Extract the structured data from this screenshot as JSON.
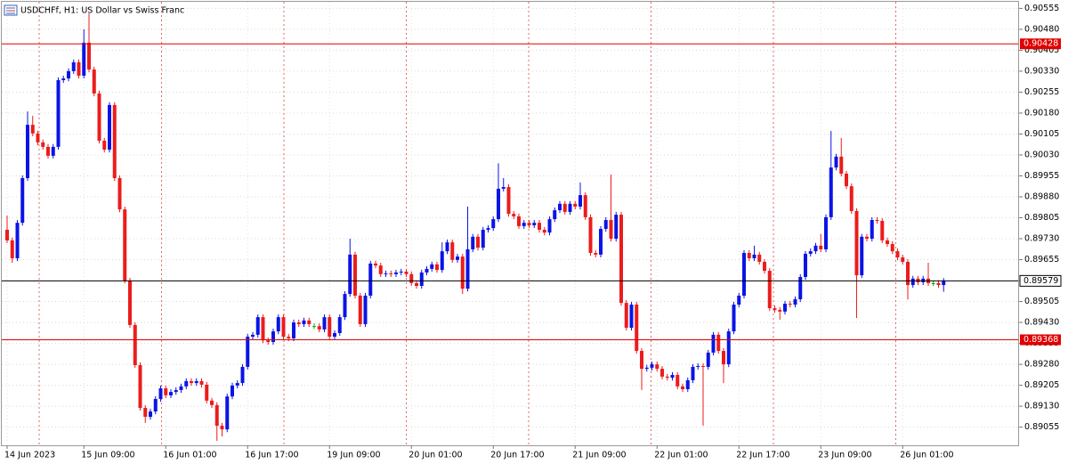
{
  "chart_data": {
    "type": "candlestick",
    "title": "USDCHFf, H1:  US Dollar vs Swiss Franc",
    "categories": [
      "14 Jun 2023",
      null,
      null,
      null,
      null,
      null,
      null,
      null,
      null,
      null,
      null,
      null,
      null,
      null,
      null,
      "15 Jun 09:00",
      null,
      null,
      null,
      null,
      null,
      null,
      null,
      null,
      null,
      null,
      null,
      null,
      null,
      null,
      null,
      "16 Jun 01:00",
      null,
      null,
      null,
      null,
      null,
      null,
      null,
      null,
      null,
      null,
      null,
      null,
      null,
      null,
      null,
      "16 Jun 17:00",
      null,
      null,
      null,
      null,
      null,
      null,
      null,
      null,
      null,
      null,
      null,
      null,
      null,
      null,
      null,
      "19 Jun 09:00",
      null,
      null,
      null,
      null,
      null,
      null,
      null,
      null,
      null,
      null,
      null,
      null,
      null,
      null,
      null,
      "20 Jun 01:00",
      null,
      null,
      null,
      null,
      null,
      null,
      null,
      null,
      null,
      null,
      null,
      null,
      null,
      null,
      null,
      "20 Jun 17:00",
      null,
      null,
      null,
      null,
      null,
      null,
      null,
      null,
      null,
      null,
      null,
      null,
      null,
      null,
      null,
      "21 Jun 09:00",
      null,
      null,
      null,
      null,
      null,
      null,
      null,
      null,
      null,
      null,
      null,
      null,
      null,
      null,
      null,
      "22 Jun 01:00",
      null,
      null,
      null,
      null,
      null,
      null,
      null,
      null,
      null,
      null,
      null,
      null,
      null,
      null,
      null,
      "22 Jun 17:00",
      null,
      null,
      null,
      null,
      null,
      null,
      null,
      null,
      null,
      null,
      null,
      null,
      null,
      null,
      null,
      "23 Jun 09:00",
      null,
      null,
      null,
      null,
      null,
      null,
      null,
      null,
      null,
      null,
      null,
      null,
      null,
      null,
      null,
      "26 Jun 01:00",
      null,
      null,
      null,
      null,
      null,
      null,
      null,
      null
    ],
    "open": [
      0.89762,
      0.89724,
      0.8966,
      0.89787,
      0.89947,
      0.90138,
      0.90107,
      0.90075,
      0.90059,
      0.90027,
      0.90059,
      0.90298,
      0.90304,
      0.9033,
      0.90362,
      0.90314,
      0.90432,
      0.90336,
      0.9025,
      0.90081,
      0.90049,
      0.90209,
      0.89947,
      0.89835,
      0.8958,
      0.89421,
      0.89277,
      0.89124,
      0.89092,
      0.89111,
      0.89156,
      0.89194,
      0.89169,
      0.89181,
      0.89188,
      0.89201,
      0.8922,
      0.89213,
      0.8922,
      0.89207,
      0.8915,
      0.89134,
      0.8906,
      0.89047,
      0.89165,
      0.89204,
      0.89213,
      0.89271,
      0.89379,
      0.89386,
      0.89449,
      0.89366,
      0.8936,
      0.89398,
      0.89449,
      0.89379,
      0.89373,
      0.8943,
      0.89424,
      0.89437,
      0.89417,
      0.89417,
      0.89405,
      0.89449,
      0.89379,
      0.89392,
      0.89449,
      0.89532,
      0.89673,
      0.89526,
      0.89424,
      0.89526,
      0.89641,
      0.89634,
      0.89603,
      0.89606,
      0.89603,
      0.89609,
      0.89612,
      0.89603,
      0.89571,
      0.89561,
      0.89609,
      0.89622,
      0.89638,
      0.89618,
      0.89685,
      0.89717,
      0.89654,
      0.89666,
      0.89551,
      0.89692,
      0.89737,
      0.89698,
      0.89762,
      0.89768,
      0.898,
      0.89909,
      0.89915,
      0.89819,
      0.8981,
      0.89775,
      0.89787,
      0.89778,
      0.89787,
      0.89762,
      0.89752,
      0.898,
      0.89832,
      0.89855,
      0.89826,
      0.89855,
      0.89845,
      0.89886,
      0.89807,
      0.89679,
      0.89673,
      0.89765,
      0.89797,
      0.8973,
      0.89816,
      0.895,
      0.89411,
      0.89494,
      0.89328,
      0.89264,
      0.89268,
      0.8928,
      0.89264,
      0.89236,
      0.89232,
      0.89242,
      0.89201,
      0.89191,
      0.89223,
      0.89271,
      0.89274,
      0.89271,
      0.89322,
      0.89386,
      0.89328,
      0.8928,
      0.89398,
      0.89494,
      0.89526,
      0.89679,
      0.8966,
      0.89673,
      0.89647,
      0.89615,
      0.89481,
      0.89475,
      0.89469,
      0.89497,
      0.89494,
      0.89513,
      0.89593,
      0.89676,
      0.89685,
      0.89705,
      0.89692,
      0.89807,
      0.89985,
      0.90024,
      0.89963,
      0.89918,
      0.89829,
      0.89599,
      0.89737,
      0.8973,
      0.89797,
      0.89794,
      0.89724,
      0.89711,
      0.89685,
      0.89663,
      0.89647,
      0.89564,
      0.89587,
      0.89574,
      0.89587,
      0.89571,
      0.89571,
      0.89564
    ],
    "high": [
      0.89813,
      0.89734,
      0.89797,
      0.89957,
      0.90186,
      0.9017,
      0.90117,
      0.90085,
      0.90069,
      0.90069,
      0.90308,
      0.90314,
      0.9034,
      0.90372,
      0.90372,
      0.9048,
      0.90537,
      0.90346,
      0.9026,
      0.90091,
      0.90219,
      0.90219,
      0.89957,
      0.89845,
      0.8959,
      0.89431,
      0.89287,
      0.89134,
      0.89121,
      0.89166,
      0.89204,
      0.89204,
      0.89191,
      0.89198,
      0.89211,
      0.8923,
      0.8923,
      0.8923,
      0.8923,
      0.89217,
      0.8916,
      0.89144,
      0.8907,
      0.89175,
      0.89214,
      0.89223,
      0.89281,
      0.89389,
      0.89396,
      0.89459,
      0.89459,
      0.89376,
      0.89408,
      0.89459,
      0.89459,
      0.89389,
      0.8944,
      0.8944,
      0.89447,
      0.89447,
      0.89427,
      0.89427,
      0.89459,
      0.89459,
      0.89402,
      0.89459,
      0.89542,
      0.8973,
      0.89683,
      0.89536,
      0.89536,
      0.89651,
      0.89651,
      0.89644,
      0.89616,
      0.89616,
      0.89619,
      0.89622,
      0.89622,
      0.89613,
      0.89581,
      0.89619,
      0.89632,
      0.89648,
      0.89648,
      0.89717,
      0.89727,
      0.89727,
      0.89676,
      0.89676,
      0.89845,
      0.89747,
      0.89747,
      0.89772,
      0.89778,
      0.8981,
      0.9,
      0.89947,
      0.89925,
      0.89829,
      0.8982,
      0.89797,
      0.89797,
      0.89797,
      0.89797,
      0.89772,
      0.8981,
      0.89842,
      0.89865,
      0.89865,
      0.89865,
      0.89865,
      0.89931,
      0.89896,
      0.89817,
      0.89689,
      0.89775,
      0.89807,
      0.8996,
      0.89826,
      0.89826,
      0.8951,
      0.89504,
      0.89504,
      0.89338,
      0.89278,
      0.8929,
      0.8929,
      0.89274,
      0.89246,
      0.89252,
      0.89252,
      0.89211,
      0.89233,
      0.89281,
      0.89284,
      0.89284,
      0.89332,
      0.89396,
      0.89396,
      0.89338,
      0.89408,
      0.89504,
      0.89536,
      0.89689,
      0.89689,
      0.89705,
      0.89683,
      0.89657,
      0.89625,
      0.89491,
      0.89485,
      0.89507,
      0.89507,
      0.89523,
      0.89603,
      0.89686,
      0.89695,
      0.89715,
      0.89747,
      0.89817,
      0.90116,
      0.90034,
      0.90091,
      0.89973,
      0.89928,
      0.89839,
      0.89747,
      0.89747,
      0.89807,
      0.89807,
      0.89804,
      0.89734,
      0.89721,
      0.89695,
      0.89673,
      0.89657,
      0.89597,
      0.89597,
      0.89597,
      0.89644,
      0.89581,
      0.89581,
      0.89589
    ],
    "low": [
      0.89714,
      0.89644,
      0.8965,
      0.89777,
      0.89937,
      0.90097,
      0.90065,
      0.90049,
      0.90017,
      0.90017,
      0.90049,
      0.90288,
      0.90294,
      0.9032,
      0.90304,
      0.90304,
      0.90326,
      0.9024,
      0.90071,
      0.90039,
      0.90039,
      0.89937,
      0.89825,
      0.8957,
      0.89411,
      0.89267,
      0.89114,
      0.8907,
      0.89082,
      0.89101,
      0.89146,
      0.89159,
      0.89159,
      0.89171,
      0.89178,
      0.89191,
      0.89203,
      0.89203,
      0.89197,
      0.8914,
      0.89124,
      0.89006,
      0.89022,
      0.89037,
      0.89155,
      0.89194,
      0.89203,
      0.89261,
      0.89369,
      0.89376,
      0.89356,
      0.8935,
      0.8935,
      0.89388,
      0.89369,
      0.89363,
      0.89363,
      0.89414,
      0.89414,
      0.89414,
      0.89407,
      0.89395,
      0.89395,
      0.89369,
      0.89369,
      0.89382,
      0.89439,
      0.89522,
      0.89516,
      0.89414,
      0.89414,
      0.89516,
      0.89624,
      0.89593,
      0.89593,
      0.89593,
      0.89593,
      0.89599,
      0.89593,
      0.89561,
      0.89551,
      0.89551,
      0.89599,
      0.89612,
      0.89608,
      0.89608,
      0.89675,
      0.89644,
      0.89644,
      0.89532,
      0.89541,
      0.89682,
      0.89688,
      0.89688,
      0.89752,
      0.89758,
      0.8979,
      0.89899,
      0.89809,
      0.898,
      0.89765,
      0.89765,
      0.89768,
      0.89768,
      0.89752,
      0.89742,
      0.89742,
      0.8979,
      0.89822,
      0.89816,
      0.89816,
      0.89835,
      0.89835,
      0.89797,
      0.89669,
      0.89663,
      0.89663,
      0.89755,
      0.8972,
      0.8972,
      0.8949,
      0.89401,
      0.89401,
      0.89318,
      0.89188,
      0.89254,
      0.89258,
      0.89254,
      0.89226,
      0.89222,
      0.89222,
      0.89191,
      0.89181,
      0.89181,
      0.89213,
      0.89261,
      0.8906,
      0.89261,
      0.89312,
      0.89318,
      0.89213,
      0.8927,
      0.89388,
      0.89484,
      0.89516,
      0.8965,
      0.8965,
      0.89637,
      0.89605,
      0.89471,
      0.89465,
      0.8944,
      0.89459,
      0.89484,
      0.89484,
      0.89503,
      0.89583,
      0.89666,
      0.89675,
      0.89682,
      0.89682,
      0.89797,
      0.89975,
      0.89953,
      0.89908,
      0.89819,
      0.89446,
      0.89589,
      0.8972,
      0.8972,
      0.89784,
      0.89714,
      0.89701,
      0.89675,
      0.89653,
      0.89637,
      0.89512,
      0.89554,
      0.89564,
      0.89564,
      0.89561,
      0.89561,
      0.89554,
      0.8954
    ],
    "close": [
      0.89724,
      0.8966,
      0.89787,
      0.89947,
      0.90138,
      0.90107,
      0.90075,
      0.90059,
      0.90027,
      0.90059,
      0.90298,
      0.90304,
      0.9033,
      0.90362,
      0.90314,
      0.90432,
      0.90336,
      0.9025,
      0.90081,
      0.90049,
      0.90209,
      0.89947,
      0.89835,
      0.8958,
      0.89421,
      0.89277,
      0.89124,
      0.89092,
      0.89111,
      0.89156,
      0.89194,
      0.89169,
      0.89181,
      0.89188,
      0.89201,
      0.8922,
      0.89213,
      0.8922,
      0.89207,
      0.8915,
      0.89134,
      0.8906,
      0.89047,
      0.89165,
      0.89204,
      0.89213,
      0.89271,
      0.89379,
      0.89386,
      0.89449,
      0.89366,
      0.8936,
      0.89398,
      0.89449,
      0.89379,
      0.89373,
      0.8943,
      0.89424,
      0.89437,
      0.89424,
      0.89417,
      0.89405,
      0.89449,
      0.89379,
      0.89392,
      0.89449,
      0.89532,
      0.89673,
      0.89526,
      0.89424,
      0.89526,
      0.89641,
      0.89634,
      0.89603,
      0.89606,
      0.89603,
      0.89609,
      0.89612,
      0.89603,
      0.89571,
      0.89561,
      0.89609,
      0.89622,
      0.89638,
      0.89618,
      0.89685,
      0.89717,
      0.89654,
      0.89666,
      0.89551,
      0.89692,
      0.89737,
      0.89698,
      0.89762,
      0.89768,
      0.898,
      0.89909,
      0.89915,
      0.89819,
      0.8981,
      0.89775,
      0.89787,
      0.89778,
      0.89787,
      0.89762,
      0.89752,
      0.898,
      0.89832,
      0.89855,
      0.89826,
      0.89855,
      0.89845,
      0.89886,
      0.89807,
      0.89679,
      0.89673,
      0.89765,
      0.89797,
      0.8973,
      0.89816,
      0.895,
      0.89411,
      0.89494,
      0.89328,
      0.89264,
      0.89268,
      0.8928,
      0.89264,
      0.89236,
      0.89232,
      0.89242,
      0.89201,
      0.89191,
      0.89223,
      0.89271,
      0.89274,
      0.89271,
      0.89322,
      0.89386,
      0.89328,
      0.8928,
      0.89398,
      0.89494,
      0.89526,
      0.89679,
      0.8966,
      0.89673,
      0.89647,
      0.89615,
      0.89481,
      0.89475,
      0.89469,
      0.89497,
      0.89494,
      0.89513,
      0.89593,
      0.89676,
      0.89685,
      0.89705,
      0.89692,
      0.89807,
      0.89985,
      0.90024,
      0.89963,
      0.89918,
      0.89829,
      0.89599,
      0.89737,
      0.8973,
      0.89797,
      0.89794,
      0.89724,
      0.89711,
      0.89685,
      0.89663,
      0.89647,
      0.89564,
      0.89587,
      0.89574,
      0.89587,
      0.89571,
      0.89571,
      0.89564,
      0.89579
    ],
    "up_color": "#0a14e6",
    "down_color": "#ec1c1c",
    "doji_color": "#10a010",
    "ylim": [
      0.8899,
      0.90585
    ],
    "yticks": [
      {
        "value": 0.90555,
        "label": "0.90555"
      },
      {
        "value": 0.9048,
        "label": "0.90480"
      },
      {
        "value": 0.90405,
        "label": "0.90405"
      },
      {
        "value": 0.9033,
        "label": "0.90330"
      },
      {
        "value": 0.90255,
        "label": "0.90255"
      },
      {
        "value": 0.9018,
        "label": "0.90180"
      },
      {
        "value": 0.90105,
        "label": "0.90105"
      },
      {
        "value": 0.9003,
        "label": "0.90030"
      },
      {
        "value": 0.89955,
        "label": "0.89955"
      },
      {
        "value": 0.8988,
        "label": "0.89880"
      },
      {
        "value": 0.89805,
        "label": "0.89805"
      },
      {
        "value": 0.8973,
        "label": "0.89730"
      },
      {
        "value": 0.89655,
        "label": "0.89655"
      },
      {
        "value": 0.8958,
        "label": "0.89580"
      },
      {
        "value": 0.89505,
        "label": "0.89505"
      },
      {
        "value": 0.8943,
        "label": "0.89430"
      },
      {
        "value": 0.89355,
        "label": "0.89355"
      },
      {
        "value": 0.8928,
        "label": "0.89280"
      },
      {
        "value": 0.89205,
        "label": "0.89205"
      },
      {
        "value": 0.8913,
        "label": "0.89130"
      },
      {
        "value": 0.89055,
        "label": "0.89055"
      }
    ],
    "grid": true,
    "levels": [
      0.90428,
      0.89368
    ],
    "level_color": "#e00000",
    "last_price": 0.89579
  }
}
